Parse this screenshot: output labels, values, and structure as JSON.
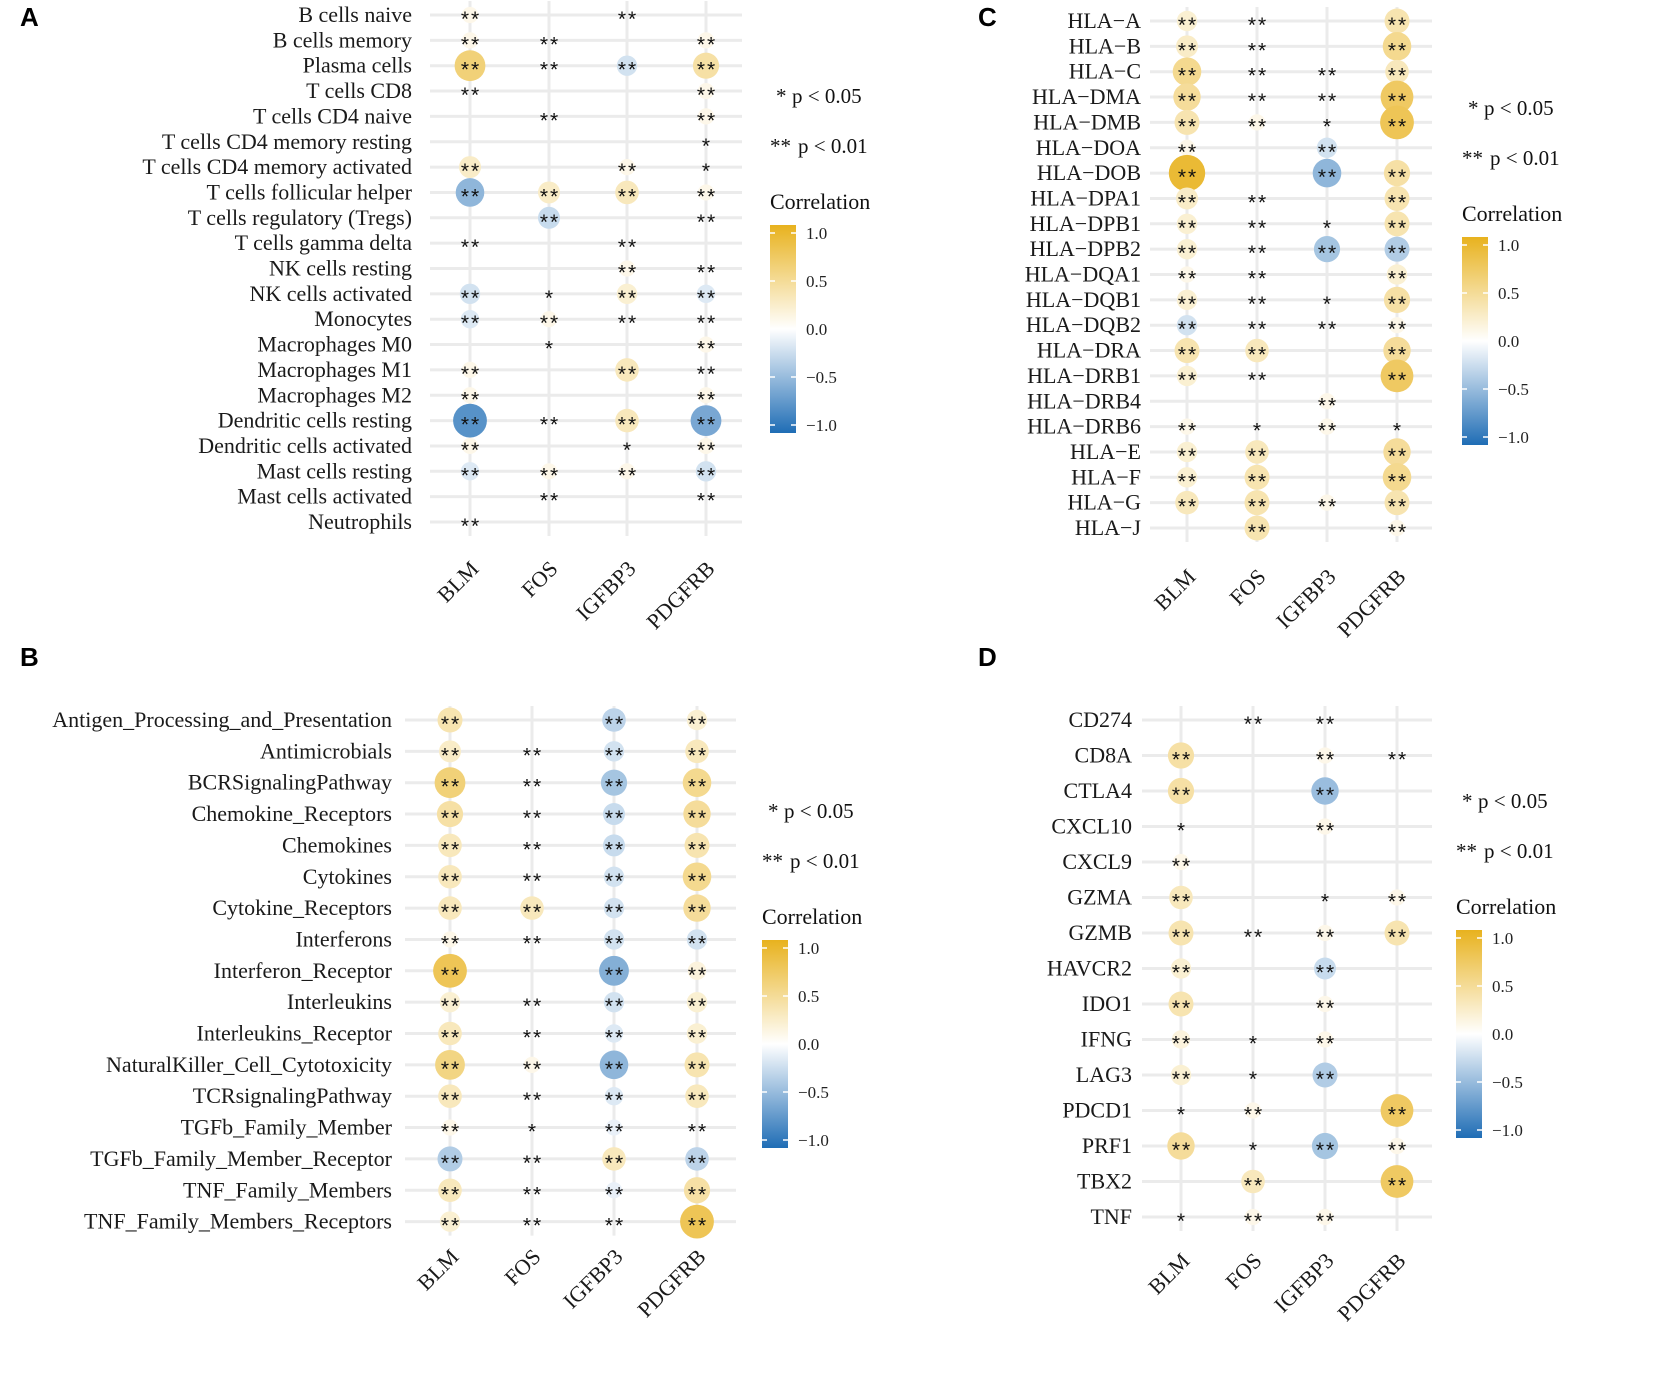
{
  "legend": {
    "sig1_stars": "*",
    "sig1_text": "p < 0.05",
    "sig2_stars": "**",
    "sig2_text": "p < 0.01",
    "title": "Correlation",
    "ticks": [
      "1.0",
      "0.5",
      "0.0",
      "−0.5",
      "−1.0"
    ],
    "colors": {
      "high": "#E8B21E",
      "mid": "#FFFFFF",
      "low": "#1F6DB5"
    }
  },
  "chart_data": [
    {
      "panel": "A",
      "type": "dotplot",
      "columns": [
        "BLM",
        "FOS",
        "IGFBP3",
        "PDGFRB"
      ],
      "rows": [
        "B cells naive",
        "B cells memory",
        "Plasma cells",
        "T cells CD8",
        "T cells CD4 naive",
        "T cells CD4 memory resting",
        "T cells CD4 memory activated",
        "T cells follicular helper",
        "T cells regulatory (Tregs)",
        "T cells gamma delta",
        "NK cells resting",
        "NK cells activated",
        "Monocytes",
        "Macrophages M0",
        "Macrophages M1",
        "Macrophages M2",
        "Dendritic cells resting",
        "Dendritic cells activated",
        "Mast cells resting",
        "Mast cells activated",
        "Neutrophils"
      ],
      "correlation": [
        [
          0.1,
          0,
          0.05,
          0
        ],
        [
          0.1,
          0.05,
          0,
          0.1
        ],
        [
          0.6,
          0.05,
          -0.2,
          0.4
        ],
        [
          0.05,
          0,
          0,
          0.1
        ],
        [
          0,
          0.05,
          0,
          0.1
        ],
        [
          0,
          0,
          0,
          0.05
        ],
        [
          0.25,
          0,
          0.1,
          0.05
        ],
        [
          -0.5,
          0.25,
          0.3,
          0.1
        ],
        [
          0,
          -0.25,
          0,
          0.05
        ],
        [
          0.05,
          0,
          0.05,
          0
        ],
        [
          0,
          0,
          0.1,
          0.05
        ],
        [
          -0.2,
          0.05,
          0.2,
          -0.15
        ],
        [
          -0.15,
          0.1,
          0.05,
          0.05
        ],
        [
          0,
          0.05,
          0,
          0.1
        ],
        [
          0.1,
          0,
          0.3,
          0.05
        ],
        [
          0.1,
          0,
          0,
          0.1
        ],
        [
          -0.75,
          0.05,
          0.3,
          -0.6
        ],
        [
          0.1,
          0,
          0.05,
          0.1
        ],
        [
          -0.15,
          0.1,
          0.1,
          -0.2
        ],
        [
          0,
          0.05,
          0,
          0.05
        ],
        [
          0.05,
          0,
          0,
          0
        ]
      ],
      "significance": [
        [
          "**",
          "",
          "**",
          ""
        ],
        [
          "**",
          "**",
          "",
          "**"
        ],
        [
          "**",
          "**",
          "**",
          "**"
        ],
        [
          "**",
          "",
          "",
          "**"
        ],
        [
          "",
          "**",
          "",
          "**"
        ],
        [
          "",
          "",
          "",
          "*"
        ],
        [
          "**",
          "",
          "**",
          "*"
        ],
        [
          "**",
          "**",
          "**",
          "**"
        ],
        [
          "",
          "**",
          "",
          "**"
        ],
        [
          "**",
          "",
          "**",
          ""
        ],
        [
          "",
          "",
          "**",
          "**"
        ],
        [
          "**",
          "*",
          "**",
          "**"
        ],
        [
          "**",
          "**",
          "**",
          "**"
        ],
        [
          "",
          "*",
          "",
          "**"
        ],
        [
          "**",
          "",
          "**",
          "**"
        ],
        [
          "**",
          "",
          "",
          "**"
        ],
        [
          "**",
          "**",
          "**",
          "**"
        ],
        [
          "**",
          "",
          "*",
          "**"
        ],
        [
          "**",
          "**",
          "**",
          "**"
        ],
        [
          "",
          "**",
          "",
          "**"
        ],
        [
          "**",
          "",
          "",
          ""
        ]
      ]
    },
    {
      "panel": "B",
      "type": "dotplot",
      "columns": [
        "BLM",
        "FOS",
        "IGFBP3",
        "PDGFRB"
      ],
      "rows": [
        "Antigen_Processing_and_Presentation",
        "Antimicrobials",
        "BCRSignalingPathway",
        "Chemokine_Receptors",
        "Chemokines",
        "Cytokines",
        "Cytokine_Receptors",
        "Interferons",
        "Interferon_Receptor",
        "Interleukins",
        "Interleukins_Receptor",
        "NaturalKiller_Cell_Cytotoxicity",
        "TCRsignalingPathway",
        "TGFb_Family_Member",
        "TGFb_Family_Member_Receptor",
        "TNF_Family_Members",
        "TNF_Family_Members_Receptors"
      ],
      "correlation": [
        [
          0.35,
          0,
          -0.3,
          0.2
        ],
        [
          0.25,
          0.05,
          -0.2,
          0.3
        ],
        [
          0.6,
          0.05,
          -0.4,
          0.5
        ],
        [
          0.4,
          0.05,
          -0.25,
          0.45
        ],
        [
          0.3,
          0.05,
          -0.25,
          0.35
        ],
        [
          0.3,
          0.05,
          -0.2,
          0.5
        ],
        [
          0.3,
          0.3,
          -0.2,
          0.45
        ],
        [
          0.1,
          0.05,
          -0.2,
          -0.2
        ],
        [
          0.75,
          0,
          -0.55,
          0.15
        ],
        [
          0.2,
          0.05,
          -0.2,
          0.2
        ],
        [
          0.3,
          0.05,
          -0.15,
          0.2
        ],
        [
          0.55,
          0.1,
          -0.5,
          0.35
        ],
        [
          0.3,
          0.05,
          -0.15,
          0.3
        ],
        [
          0.1,
          0.05,
          -0.1,
          0.05
        ],
        [
          -0.35,
          0.05,
          0.3,
          -0.3
        ],
        [
          0.3,
          0.05,
          -0.1,
          0.4
        ],
        [
          0.2,
          0.05,
          0.05,
          0.75
        ]
      ],
      "significance": [
        [
          "**",
          "",
          "**",
          "**"
        ],
        [
          "**",
          "**",
          "**",
          "**"
        ],
        [
          "**",
          "**",
          "**",
          "**"
        ],
        [
          "**",
          "**",
          "**",
          "**"
        ],
        [
          "**",
          "**",
          "**",
          "**"
        ],
        [
          "**",
          "**",
          "**",
          "**"
        ],
        [
          "**",
          "**",
          "**",
          "**"
        ],
        [
          "**",
          "**",
          "**",
          "**"
        ],
        [
          "**",
          "",
          "**",
          "**"
        ],
        [
          "**",
          "**",
          "**",
          "**"
        ],
        [
          "**",
          "**",
          "**",
          "**"
        ],
        [
          "**",
          "**",
          "**",
          "**"
        ],
        [
          "**",
          "**",
          "**",
          "**"
        ],
        [
          "**",
          "*",
          "**",
          "**"
        ],
        [
          "**",
          "**",
          "**",
          "**"
        ],
        [
          "**",
          "**",
          "**",
          "**"
        ],
        [
          "**",
          "**",
          "**",
          "**"
        ]
      ]
    },
    {
      "panel": "C",
      "type": "dotplot",
      "columns": [
        "BLM",
        "FOS",
        "IGFBP3",
        "PDGFRB"
      ],
      "rows": [
        "HLA−A",
        "HLA−B",
        "HLA−C",
        "HLA−DMA",
        "HLA−DMB",
        "HLA−DOA",
        "HLA−DOB",
        "HLA−DPA1",
        "HLA−DPB1",
        "HLA−DPB2",
        "HLA−DQA1",
        "HLA−DQB1",
        "HLA−DQB2",
        "HLA−DRA",
        "HLA−DRB1",
        "HLA−DRB4",
        "HLA−DRB6",
        "HLA−E",
        "HLA−F",
        "HLA−G",
        "HLA−J"
      ],
      "correlation": [
        [
          0.2,
          0.05,
          0,
          0.35
        ],
        [
          0.25,
          0.05,
          0,
          0.5
        ],
        [
          0.5,
          0.05,
          0.05,
          0.3
        ],
        [
          0.45,
          0.05,
          0.05,
          0.7
        ],
        [
          0.35,
          0.1,
          0,
          0.75
        ],
        [
          0.1,
          0,
          -0.2,
          0
        ],
        [
          0.9,
          0,
          -0.5,
          0.4
        ],
        [
          0.25,
          0.05,
          0,
          0.35
        ],
        [
          0.2,
          0.05,
          0,
          0.35
        ],
        [
          0.2,
          0.05,
          -0.4,
          -0.35
        ],
        [
          0.1,
          0.05,
          0,
          0.2
        ],
        [
          0.2,
          0.05,
          0.05,
          0.4
        ],
        [
          -0.2,
          0.05,
          0.05,
          0.1
        ],
        [
          0.35,
          0.3,
          0,
          0.45
        ],
        [
          0.2,
          0.05,
          0,
          0.7
        ],
        [
          0,
          0,
          0.1,
          0
        ],
        [
          0.1,
          0.05,
          0.1,
          0.05
        ],
        [
          0.2,
          0.3,
          0,
          0.45
        ],
        [
          0.2,
          0.35,
          0,
          0.5
        ],
        [
          0.3,
          0.35,
          0.1,
          0.35
        ],
        [
          0,
          0.35,
          0,
          0.1
        ]
      ],
      "significance": [
        [
          "**",
          "**",
          "",
          "**"
        ],
        [
          "**",
          "**",
          "",
          "**"
        ],
        [
          "**",
          "**",
          "**",
          "**"
        ],
        [
          "**",
          "**",
          "**",
          "**"
        ],
        [
          "**",
          "**",
          "*",
          "**"
        ],
        [
          "**",
          "",
          "**",
          ""
        ],
        [
          "**",
          "",
          "**",
          "**"
        ],
        [
          "**",
          "**",
          "",
          "**"
        ],
        [
          "**",
          "**",
          "*",
          "**"
        ],
        [
          "**",
          "**",
          "**",
          "**"
        ],
        [
          "**",
          "**",
          "",
          "**"
        ],
        [
          "**",
          "**",
          "*",
          "**"
        ],
        [
          "**",
          "**",
          "**",
          "**"
        ],
        [
          "**",
          "**",
          "",
          "**"
        ],
        [
          "**",
          "**",
          "",
          "**"
        ],
        [
          "",
          "",
          "**",
          ""
        ],
        [
          "**",
          "*",
          "**",
          "*"
        ],
        [
          "**",
          "**",
          "",
          "**"
        ],
        [
          "**",
          "**",
          "",
          "**"
        ],
        [
          "**",
          "**",
          "**",
          "**"
        ],
        [
          "",
          "**",
          "",
          "**"
        ]
      ]
    },
    {
      "panel": "D",
      "type": "dotplot",
      "columns": [
        "BLM",
        "FOS",
        "IGFBP3",
        "PDGFRB"
      ],
      "rows": [
        "CD274",
        "CD8A",
        "CTLA4",
        "CXCL10",
        "CXCL9",
        "GZMA",
        "GZMB",
        "HAVCR2",
        "IDO1",
        "IFNG",
        "LAG3",
        "PDCD1",
        "PRF1",
        "TBX2",
        "TNF"
      ],
      "correlation": [
        [
          0,
          0.05,
          0.05,
          0
        ],
        [
          0.4,
          0,
          0.1,
          0.05
        ],
        [
          0.4,
          0,
          -0.45,
          0
        ],
        [
          0.05,
          0,
          0.1,
          0
        ],
        [
          0.1,
          0,
          0,
          0
        ],
        [
          0.3,
          0,
          0.05,
          0.1
        ],
        [
          0.35,
          0.05,
          0.1,
          0.35
        ],
        [
          0.2,
          0,
          -0.25,
          0
        ],
        [
          0.35,
          0,
          0.1,
          0
        ],
        [
          0.15,
          0.05,
          0.1,
          0
        ],
        [
          0.2,
          0.05,
          -0.35,
          0
        ],
        [
          0.05,
          0.1,
          0,
          0.7
        ],
        [
          0.45,
          0.05,
          -0.4,
          0.1
        ],
        [
          0,
          0.3,
          0,
          0.7
        ],
        [
          0.05,
          0.1,
          0.1,
          0
        ]
      ],
      "significance": [
        [
          "",
          "**",
          "**",
          ""
        ],
        [
          "**",
          "",
          "**",
          "**"
        ],
        [
          "**",
          "",
          "**",
          ""
        ],
        [
          "*",
          "",
          "**",
          ""
        ],
        [
          "**",
          "",
          "",
          ""
        ],
        [
          "**",
          "",
          "*",
          "**"
        ],
        [
          "**",
          "**",
          "**",
          "**"
        ],
        [
          "**",
          "",
          "**",
          ""
        ],
        [
          "**",
          "",
          "**",
          ""
        ],
        [
          "**",
          "*",
          "**",
          ""
        ],
        [
          "**",
          "*",
          "**",
          ""
        ],
        [
          "*",
          "**",
          "",
          "**"
        ],
        [
          "**",
          "*",
          "**",
          "**"
        ],
        [
          "",
          "**",
          "",
          "**"
        ],
        [
          "*",
          "**",
          "**",
          ""
        ]
      ]
    }
  ]
}
